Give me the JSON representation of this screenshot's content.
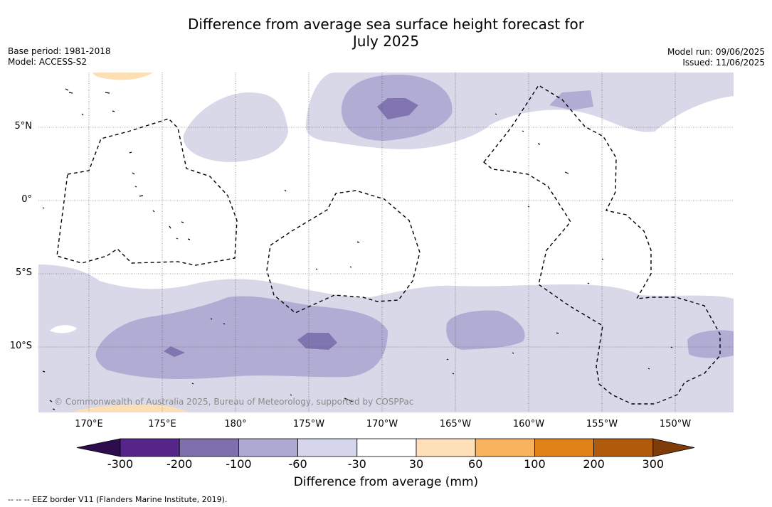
{
  "header": {
    "title_line1": "Difference from average sea surface height forecast for",
    "title_line2": "July 2025",
    "base_period": "Base period: 1981-2018",
    "model": "Model: ACCESS-S2",
    "model_run": "Model run: 09/06/2025",
    "issued": "Issued: 11/06/2025"
  },
  "map": {
    "latitude_labels": [
      "5°N",
      "0°",
      "5°S",
      "10°S"
    ],
    "longitude_labels": [
      "170°E",
      "175°E",
      "180°",
      "175°W",
      "170°W",
      "165°W",
      "160°W",
      "155°W",
      "150°W"
    ],
    "copyright": "© Commonwealth of Australia 2025, Bureau of Meteorology, supported by COSPPac",
    "colors": {
      "band_-100_-60": "#d8d8e8",
      "band_-200_-100": "#b0acd4",
      "band_-300_-200": "#8075b0",
      "band_30_60": "#fddfb6",
      "land": "#000000",
      "eez_border": "#000000"
    }
  },
  "colorbar": {
    "ticks": [
      "-300",
      "-200",
      "-100",
      "-60",
      "-30",
      "30",
      "60",
      "100",
      "200",
      "300"
    ],
    "colors": [
      "#2e0d4e",
      "#552589",
      "#7f6fac",
      "#ada9d2",
      "#d6d6ea",
      "#ffffff",
      "#fde0b8",
      "#f9b25e",
      "#e08217",
      "#b05b0c",
      "#7f3b08"
    ],
    "title": "Difference from average (mm)"
  },
  "footnote": "--  --  -- EEZ border V11 (Flanders Marine Institute, 2019)."
}
